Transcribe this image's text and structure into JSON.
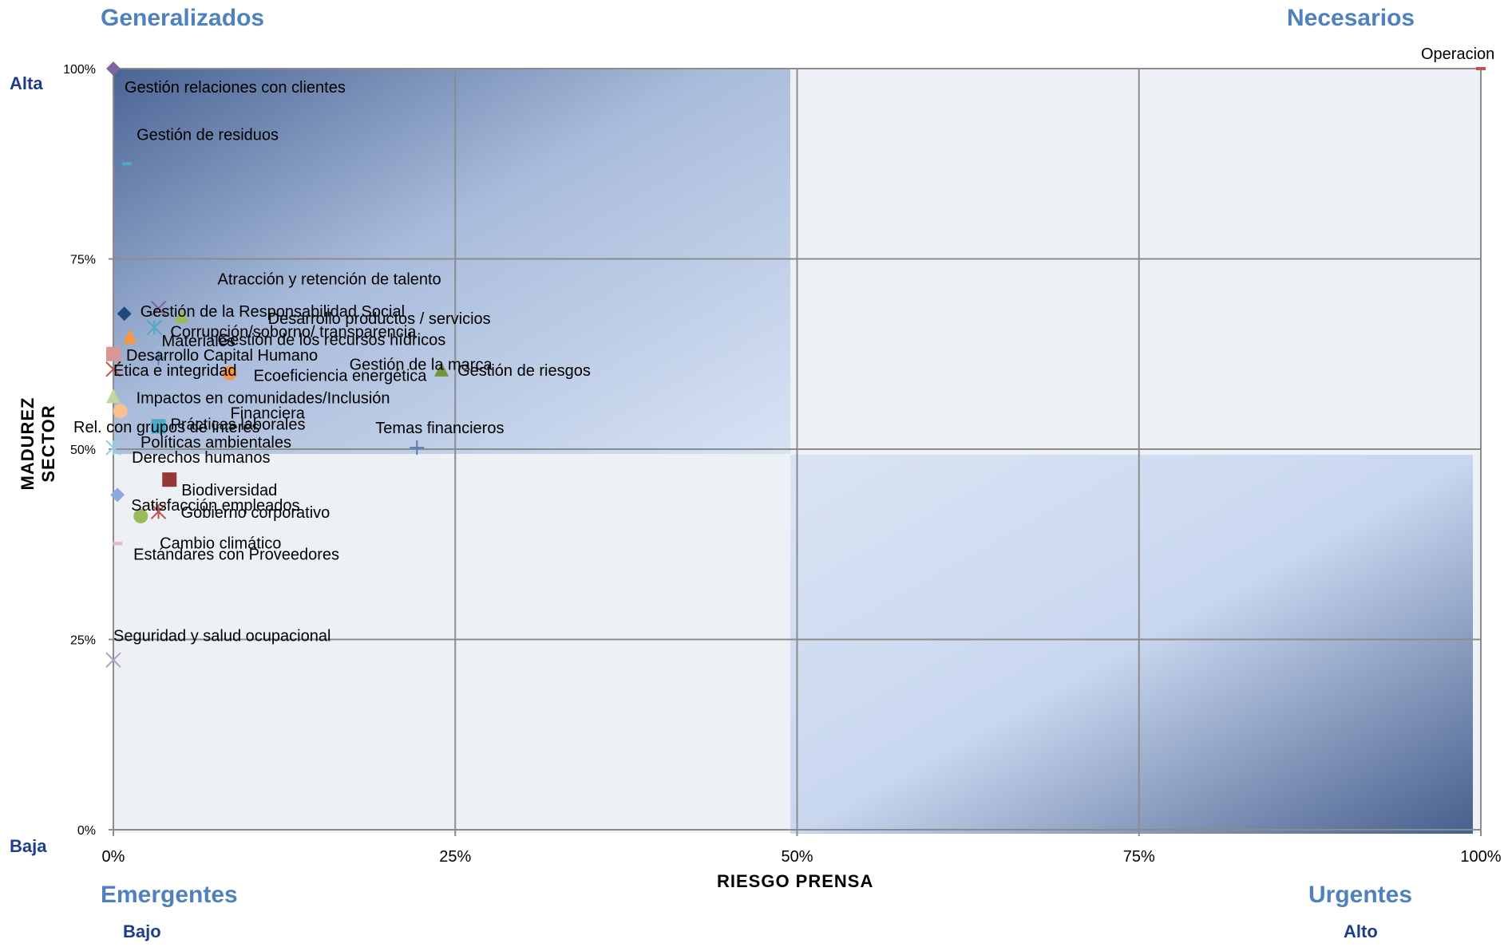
{
  "quadrant_labels": {
    "top_left": "Generalizados",
    "top_right": "Necesarios",
    "bottom_left": "Emergentes",
    "bottom_right": "Urgentes"
  },
  "y_levels": {
    "high": "Alta",
    "low": "Baja"
  },
  "x_levels": {
    "low": "Bajo",
    "high": "Alto"
  },
  "chart_data": {
    "type": "scatter",
    "xlabel": "RIESGO PRENSA",
    "ylabel": "MADUREZ SECTOR",
    "xlim": [
      0,
      1
    ],
    "ylim": [
      0,
      1
    ],
    "x_ticks": [
      "0%",
      "25%",
      "50%",
      "75%",
      "100%"
    ],
    "y_ticks": [
      "0%",
      "25%",
      "50%",
      "75%",
      "100%"
    ],
    "grid": true,
    "colors": {
      "grid": "#8c8c8c",
      "plot_bg": "#edf0f5",
      "gradient_dark": "#4a6494",
      "gradient_light": "#d4e0f3"
    },
    "points": [
      {
        "label": "Operacion",
        "x": 1.0,
        "y": 1.0,
        "marker": "dash",
        "color": "#c0504d"
      },
      {
        "label": "Gestión relaciones con clientes",
        "x": 0.0,
        "y": 1.0,
        "marker": "diamond",
        "color": "#8064a2"
      },
      {
        "label": "Gestión de residuos",
        "x": 0.01,
        "y": 0.875,
        "marker": "dash",
        "color": "#4bacc6"
      },
      {
        "label": "Atracción y retención de talento",
        "x": 0.033,
        "y": 0.685,
        "marker": "x",
        "color": "#8064a2"
      },
      {
        "label": "Gestión de los recursos hídricos",
        "x": 0.033,
        "y": 0.62,
        "marker": "plus",
        "color": "#4f81bd"
      },
      {
        "label": "Desarrollo productos / servicios",
        "x": 0.05,
        "y": 0.675,
        "marker": "triangle",
        "color": "#9bbb59"
      },
      {
        "label": "Gestión de la Responsabilidad Social",
        "x": 0.008,
        "y": 0.678,
        "marker": "diamond",
        "color": "#1f497d"
      },
      {
        "label": "Materiales",
        "x": 0.012,
        "y": 0.648,
        "marker": "triangle",
        "color": "#f79646"
      },
      {
        "label": "Corrupción/soborno/ transparencia",
        "x": 0.03,
        "y": 0.66,
        "marker": "asterisk",
        "color": "#4bacc6"
      },
      {
        "label": "Gestión de la marca",
        "x": 0.085,
        "y": 0.6,
        "marker": "circle",
        "color": "#f79646"
      },
      {
        "label": "Desarrollo Capital Humano",
        "x": 0.0,
        "y": 0.625,
        "marker": "square",
        "color": "#d99694"
      },
      {
        "label": "Ética e integridad",
        "x": 0.0,
        "y": 0.605,
        "marker": "x",
        "color": "#c0504d"
      },
      {
        "label": "Ecoeficiencia energética",
        "x": 0.085,
        "y": 0.6,
        "marker": "circle",
        "color": "#f79646"
      },
      {
        "label": "Gestión de riesgos",
        "x": 0.24,
        "y": 0.605,
        "marker": "triangle",
        "color": "#77933c"
      },
      {
        "label": "Rel. con grupos de interés",
        "x": 0.0,
        "y": 0.57,
        "marker": "triangle",
        "color": "#c3d69b"
      },
      {
        "label": "Impactos en comunidades/Inclusión",
        "x": 0.005,
        "y": 0.55,
        "marker": "circle",
        "color": "#fac090"
      },
      {
        "label": "Financiera",
        "x": 0.033,
        "y": 0.53,
        "marker": "square",
        "color": "#31859c"
      },
      {
        "label": "Prácticas laborales",
        "x": 0.033,
        "y": 0.53,
        "marker": "square",
        "color": "#4bacc6"
      },
      {
        "label": "Temas financieros",
        "x": 0.222,
        "y": 0.502,
        "marker": "plus",
        "color": "#4f81bd"
      },
      {
        "label": "Políticas ambientales",
        "x": 0.0,
        "y": 0.502,
        "marker": "asterisk",
        "color": "#93cddd"
      },
      {
        "label": "Derechos humanos",
        "x": 0.003,
        "y": 0.44,
        "marker": "diamond",
        "color": "#8ea9db"
      },
      {
        "label": "Biodiversidad",
        "x": 0.041,
        "y": 0.46,
        "marker": "square",
        "color": "#953735"
      },
      {
        "label": "Gobierno corporativo",
        "x": 0.033,
        "y": 0.418,
        "marker": "asterisk",
        "color": "#c0504d"
      },
      {
        "label": "Satisfacción empleados",
        "x": 0.02,
        "y": 0.412,
        "marker": "circle",
        "color": "#9bbb59"
      },
      {
        "label": "Cambio climático",
        "x": 0.003,
        "y": 0.376,
        "marker": "dash",
        "color": "#e6b9b8"
      },
      {
        "label": "Estándares con Proveedores",
        "x": 0.003,
        "y": 0.376,
        "marker": "dash",
        "color": "#e6b9b8"
      },
      {
        "label": "Seguridad y salud ocupacional",
        "x": 0.0,
        "y": 0.223,
        "marker": "x",
        "color": "#b3a2c7"
      }
    ]
  }
}
